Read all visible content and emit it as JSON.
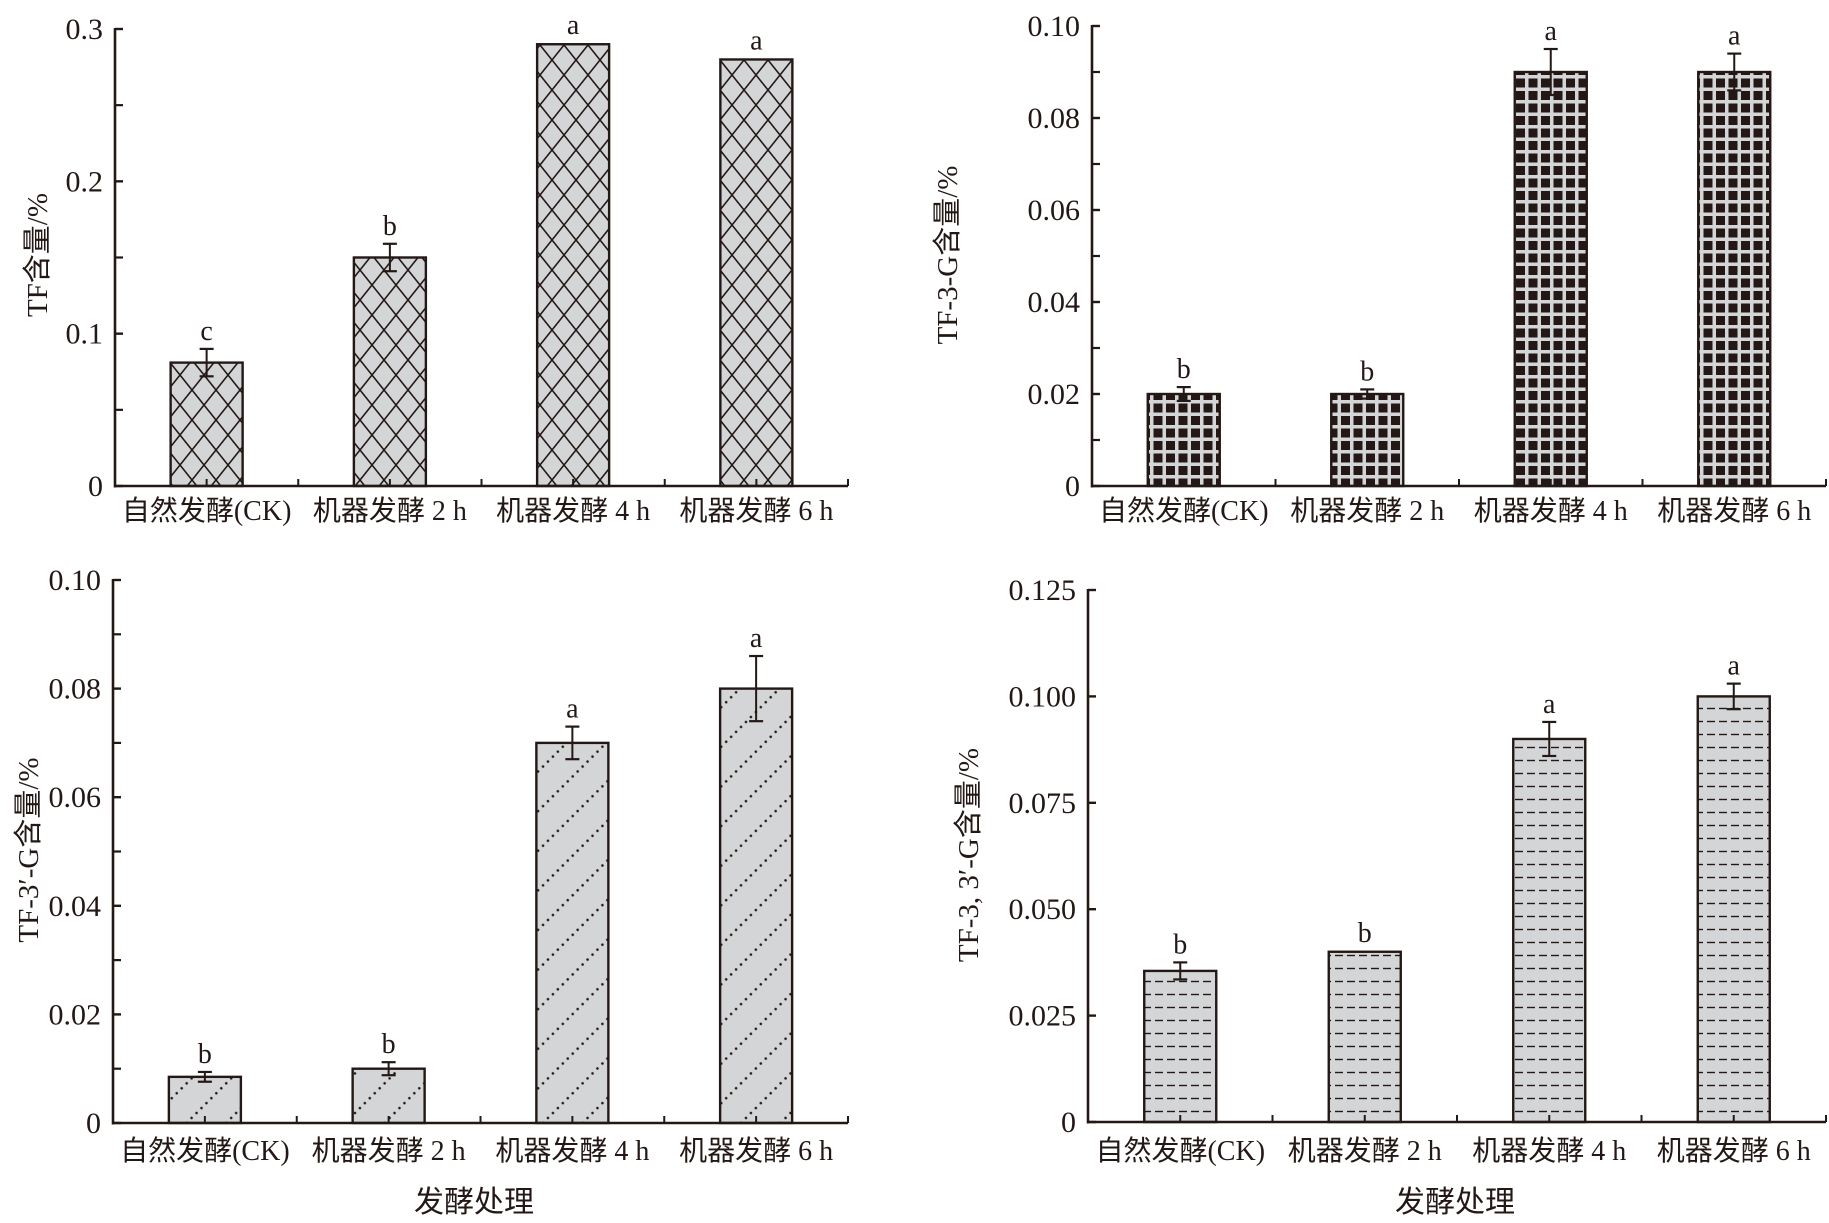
{
  "colors": {
    "ink": "#231815",
    "bar_fill": "#d4d5d7",
    "grid_fill_dark": "#231815",
    "grid_line_light": "#d4d5d7"
  },
  "chart_data": [
    {
      "id": "tf",
      "type": "bar",
      "ylabel": "TF含量/%",
      "xlabel": "",
      "categories": [
        "自然发酵(CK)",
        "机器发酵 2 h",
        "机器发酵 4 h",
        "机器发酵 6 h"
      ],
      "values": [
        0.081,
        0.15,
        0.29,
        0.28
      ],
      "errors": [
        0.009,
        0.009,
        0,
        0
      ],
      "significance": [
        "c",
        "b",
        "a",
        "a"
      ],
      "ylim": [
        0,
        0.3
      ],
      "yticks": [
        0,
        0.1,
        0.2,
        0.3
      ],
      "ytick_labels": [
        "0",
        "0.1",
        "0.2",
        "0.3"
      ],
      "minor_ticks": true,
      "pattern": "crosshatch",
      "grid": false,
      "legend": "none"
    },
    {
      "id": "tf3g",
      "type": "bar",
      "ylabel": "TF-3-G含量/%",
      "xlabel": "",
      "categories": [
        "自然发酵(CK)",
        "机器发酵 2 h",
        "机器发酵 4 h",
        "机器发酵 6 h"
      ],
      "values": [
        0.02,
        0.02,
        0.09,
        0.09
      ],
      "errors": [
        0.0015,
        0.001,
        0.005,
        0.004
      ],
      "significance": [
        "b",
        "b",
        "a",
        "a"
      ],
      "ylim": [
        0,
        0.1
      ],
      "yticks": [
        0,
        0.02,
        0.04,
        0.06,
        0.08,
        0.1
      ],
      "ytick_labels": [
        "0",
        "0.02",
        "0.04",
        "0.06",
        "0.08",
        "0.10"
      ],
      "minor_ticks": true,
      "pattern": "grid",
      "grid": false,
      "legend": "none"
    },
    {
      "id": "tf3pg",
      "type": "bar",
      "ylabel": "TF-3′-G含量/%",
      "xlabel": "发酵处理",
      "categories": [
        "自然发酵(CK)",
        "机器发酵 2 h",
        "机器发酵 4 h",
        "机器发酵 6 h"
      ],
      "values": [
        0.0085,
        0.01,
        0.07,
        0.08
      ],
      "errors": [
        0.0009,
        0.0012,
        0.003,
        0.006
      ],
      "significance": [
        "b",
        "b",
        "a",
        "a"
      ],
      "ylim": [
        0,
        0.1
      ],
      "yticks": [
        0,
        0.02,
        0.04,
        0.06,
        0.08,
        0.1
      ],
      "ytick_labels": [
        "0",
        "0.02",
        "0.04",
        "0.06",
        "0.08",
        "0.10"
      ],
      "minor_ticks": true,
      "pattern": "dotted-diagonal",
      "grid": false,
      "legend": "none"
    },
    {
      "id": "tf33g",
      "type": "bar",
      "ylabel": "TF-3, 3′-G含量/%",
      "xlabel": "发酵处理",
      "categories": [
        "自然发酵(CK)",
        "机器发酵 2 h",
        "机器发酵 4 h",
        "机器发酵 6 h"
      ],
      "values": [
        0.0355,
        0.04,
        0.09,
        0.1
      ],
      "errors": [
        0.002,
        0,
        0.004,
        0.003
      ],
      "significance": [
        "b",
        "b",
        "a",
        "a"
      ],
      "ylim": [
        0,
        0.125
      ],
      "yticks": [
        0,
        0.025,
        0.05,
        0.075,
        0.1,
        0.125
      ],
      "ytick_labels": [
        "0",
        "0.025",
        "0.050",
        "0.075",
        "0.100",
        "0.125"
      ],
      "minor_ticks": false,
      "pattern": "dashes",
      "grid": false,
      "legend": "none"
    }
  ]
}
